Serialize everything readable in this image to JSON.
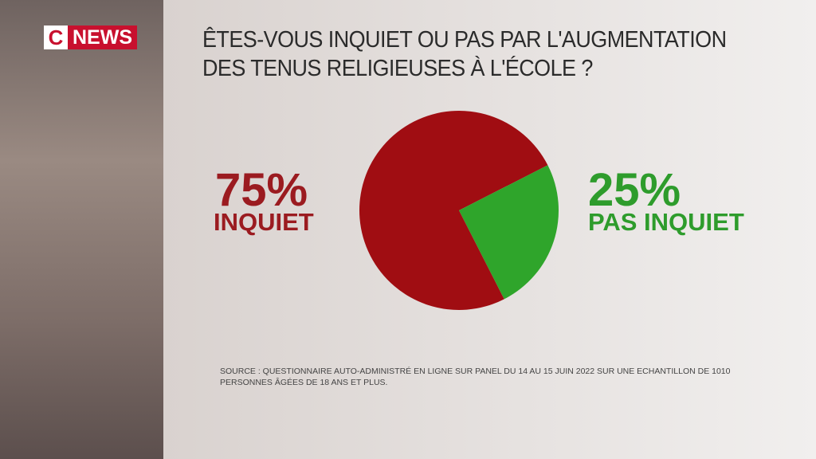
{
  "logo": {
    "c": "C",
    "news": "NEWS"
  },
  "chart_data": {
    "type": "pie",
    "title": "ÊTES-VOUS INQUIET OU PAS PAR L'AUGMENTATION DES TENUS RELIGIEUSES À L'ÉCOLE ?",
    "categories": [
      "INQUIET",
      "PAS INQUIET"
    ],
    "values": [
      75,
      25
    ],
    "value_labels": [
      "75%",
      "25%"
    ],
    "colors": [
      "#a00d12",
      "#2fa52b"
    ],
    "label_colors": [
      "#9b1b20",
      "#2e9c2c"
    ],
    "source": "SOURCE : QUESTIONNAIRE AUTO-ADMINISTRÉ EN LIGNE SUR PANEL DU 14 AU 15 JUIN 2022 SUR UNE ECHANTILLON DE 1010 PERSONNES ÂGÉES DE 18 ANS ET PLUS."
  }
}
